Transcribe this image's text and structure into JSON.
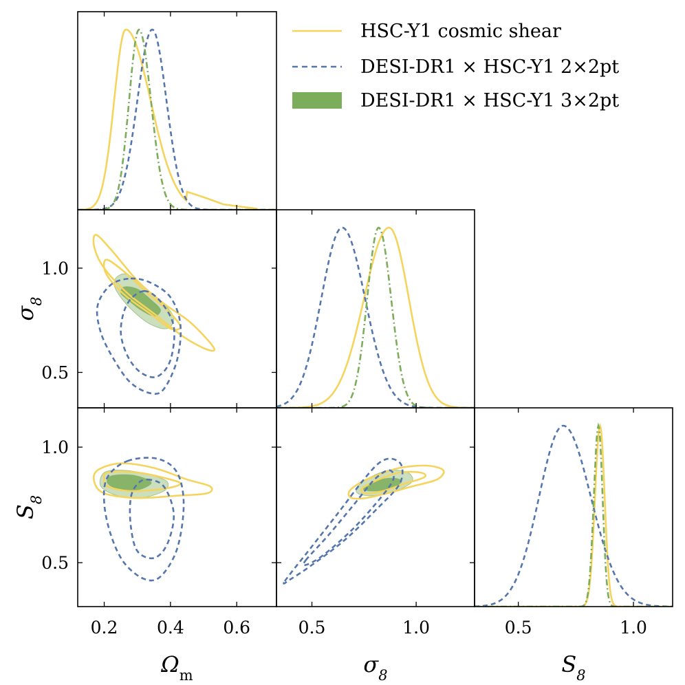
{
  "chart_data": {
    "type": "triangle-corner",
    "parameters": [
      {
        "key": "Om",
        "label": "Ωm",
        "range": [
          0.12,
          0.72
        ],
        "ticks": [
          0.2,
          0.4,
          0.6
        ],
        "tick_labels": [
          "0.2",
          "0.4",
          "0.6"
        ]
      },
      {
        "key": "s8",
        "label": "σ8",
        "range": [
          0.33,
          1.28
        ],
        "ticks": [
          0.5,
          1.0
        ],
        "tick_labels": [
          "0.5",
          "1.0"
        ]
      },
      {
        "key": "S8",
        "label": "S8",
        "range": [
          0.31,
          1.17
        ],
        "ticks": [
          0.5,
          1.0
        ],
        "tick_labels": [
          "0.5",
          "1.0"
        ]
      }
    ],
    "legend": {
      "placement": "top-right",
      "entries": [
        {
          "name": "HSC-Y1 cosmic shear",
          "style": "solid",
          "color": "#f5d45e"
        },
        {
          "name": "DESI-DR1 × HSC-Y1 2×2pt",
          "style": "dashed",
          "color": "#5576ac"
        },
        {
          "name": "DESI-DR1 × HSC-Y1 3×2pt",
          "style": "filled",
          "color": "#7cad5a"
        }
      ]
    },
    "marginals": {
      "Om": [
        {
          "series": "HSC-Y1 cosmic shear",
          "peak": 0.265,
          "sigma_left": 0.035,
          "sigma_right": 0.075,
          "tail": [
            [
              0.45,
              0.1
            ],
            [
              0.5,
              0.07
            ],
            [
              0.56,
              0.03
            ],
            [
              0.66,
              0.006
            ]
          ]
        },
        {
          "series": "DESI-DR1 × HSC-Y1 2×2pt",
          "peak": 0.345,
          "sigma_left": 0.045,
          "sigma_right": 0.043
        },
        {
          "series": "DESI-DR1 × HSC-Y1 3×2pt",
          "peak": 0.305,
          "sigma_left": 0.03,
          "sigma_right": 0.036
        }
      ],
      "s8": [
        {
          "series": "HSC-Y1 cosmic shear",
          "peak": 0.87,
          "sigma_left": 0.12,
          "sigma_right": 0.095
        },
        {
          "series": "DESI-DR1 × HSC-Y1 2×2pt",
          "peak": 0.645,
          "sigma_left": 0.1,
          "sigma_right": 0.11
        },
        {
          "series": "DESI-DR1 × HSC-Y1 3×2pt",
          "peak": 0.82,
          "sigma_left": 0.055,
          "sigma_right": 0.06
        }
      ],
      "S8": [
        {
          "series": "HSC-Y1 cosmic shear",
          "peak": 0.855,
          "sigma_left": 0.022,
          "sigma_right": 0.02
        },
        {
          "series": "DESI-DR1 × HSC-Y1 2×2pt",
          "peak": 0.695,
          "sigma_left": 0.105,
          "sigma_right": 0.12
        },
        {
          "series": "DESI-DR1 × HSC-Y1 3×2pt",
          "peak": 0.848,
          "sigma_left": 0.02,
          "sigma_right": 0.018
        }
      ]
    },
    "contours": {
      "s8_vs_Om": [
        {
          "series": "HSC-Y1 cosmic shear",
          "level": "95%",
          "points": [
            [
              0.175,
              1.16
            ],
            [
              0.22,
              1.09
            ],
            [
              0.3,
              0.94
            ],
            [
              0.38,
              0.83
            ],
            [
              0.46,
              0.74
            ],
            [
              0.53,
              0.62
            ],
            [
              0.51,
              0.61
            ],
            [
              0.44,
              0.67
            ],
            [
              0.36,
              0.77
            ],
            [
              0.27,
              0.88
            ],
            [
              0.2,
              1.0
            ],
            [
              0.17,
              1.1
            ]
          ]
        },
        {
          "series": "HSC-Y1 cosmic shear",
          "level": "68%",
          "points": [
            [
              0.21,
              1.04
            ],
            [
              0.27,
              0.97
            ],
            [
              0.33,
              0.88
            ],
            [
              0.39,
              0.8
            ],
            [
              0.43,
              0.72
            ],
            [
              0.4,
              0.71
            ],
            [
              0.34,
              0.78
            ],
            [
              0.27,
              0.86
            ],
            [
              0.22,
              0.94
            ],
            [
              0.2,
              1.0
            ]
          ]
        },
        {
          "series": "DESI-DR1 × HSC-Y1 2×2pt",
          "level": "95%",
          "points": [
            [
              0.28,
              0.95
            ],
            [
              0.34,
              0.93
            ],
            [
              0.4,
              0.86
            ],
            [
              0.43,
              0.73
            ],
            [
              0.42,
              0.56
            ],
            [
              0.38,
              0.42
            ],
            [
              0.34,
              0.4
            ],
            [
              0.28,
              0.45
            ],
            [
              0.23,
              0.56
            ],
            [
              0.19,
              0.69
            ],
            [
              0.18,
              0.82
            ],
            [
              0.22,
              0.92
            ]
          ]
        },
        {
          "series": "DESI-DR1 × HSC-Y1 2×2pt",
          "level": "68%",
          "points": [
            [
              0.32,
              0.89
            ],
            [
              0.37,
              0.84
            ],
            [
              0.41,
              0.72
            ],
            [
              0.4,
              0.56
            ],
            [
              0.36,
              0.48
            ],
            [
              0.31,
              0.5
            ],
            [
              0.27,
              0.58
            ],
            [
              0.25,
              0.7
            ],
            [
              0.27,
              0.83
            ]
          ]
        },
        {
          "series": "DESI-DR1 × HSC-Y1 3×2pt",
          "level": "95%",
          "points": [
            [
              0.24,
              0.96
            ],
            [
              0.27,
              0.97
            ],
            [
              0.32,
              0.91
            ],
            [
              0.38,
              0.83
            ],
            [
              0.41,
              0.76
            ],
            [
              0.39,
              0.71
            ],
            [
              0.34,
              0.73
            ],
            [
              0.29,
              0.79
            ],
            [
              0.25,
              0.86
            ],
            [
              0.23,
              0.92
            ]
          ]
        },
        {
          "series": "DESI-DR1 × HSC-Y1 3×2pt",
          "level": "68%",
          "points": [
            [
              0.26,
              0.91
            ],
            [
              0.3,
              0.9
            ],
            [
              0.34,
              0.85
            ],
            [
              0.37,
              0.8
            ],
            [
              0.35,
              0.77
            ],
            [
              0.31,
              0.8
            ],
            [
              0.27,
              0.85
            ],
            [
              0.25,
              0.88
            ]
          ]
        }
      ],
      "S8_vs_Om": [
        {
          "series": "HSC-Y1 cosmic shear",
          "level": "95%",
          "points": [
            [
              0.18,
              0.9
            ],
            [
              0.25,
              0.93
            ],
            [
              0.35,
              0.91
            ],
            [
              0.45,
              0.86
            ],
            [
              0.52,
              0.83
            ],
            [
              0.51,
              0.8
            ],
            [
              0.42,
              0.79
            ],
            [
              0.3,
              0.78
            ],
            [
              0.2,
              0.8
            ],
            [
              0.17,
              0.85
            ]
          ]
        },
        {
          "series": "HSC-Y1 cosmic shear",
          "level": "68%",
          "points": [
            [
              0.21,
              0.89
            ],
            [
              0.3,
              0.89
            ],
            [
              0.4,
              0.86
            ],
            [
              0.43,
              0.84
            ],
            [
              0.38,
              0.82
            ],
            [
              0.28,
              0.81
            ],
            [
              0.21,
              0.83
            ],
            [
              0.2,
              0.86
            ]
          ]
        },
        {
          "series": "DESI-DR1 × HSC-Y1 2×2pt",
          "level": "95%",
          "points": [
            [
              0.27,
              0.94
            ],
            [
              0.36,
              0.95
            ],
            [
              0.42,
              0.89
            ],
            [
              0.44,
              0.75
            ],
            [
              0.42,
              0.56
            ],
            [
              0.37,
              0.44
            ],
            [
              0.32,
              0.43
            ],
            [
              0.26,
              0.5
            ],
            [
              0.22,
              0.62
            ],
            [
              0.2,
              0.76
            ],
            [
              0.21,
              0.87
            ]
          ]
        },
        {
          "series": "DESI-DR1 × HSC-Y1 2×2pt",
          "level": "68%",
          "points": [
            [
              0.33,
              0.86
            ],
            [
              0.38,
              0.83
            ],
            [
              0.41,
              0.71
            ],
            [
              0.39,
              0.58
            ],
            [
              0.35,
              0.52
            ],
            [
              0.3,
              0.55
            ],
            [
              0.28,
              0.66
            ],
            [
              0.28,
              0.78
            ],
            [
              0.3,
              0.84
            ]
          ]
        },
        {
          "series": "DESI-DR1 × HSC-Y1 3×2pt",
          "level": "95%",
          "points": [
            [
              0.2,
              0.89
            ],
            [
              0.26,
              0.9
            ],
            [
              0.34,
              0.88
            ],
            [
              0.39,
              0.85
            ],
            [
              0.38,
              0.81
            ],
            [
              0.31,
              0.78
            ],
            [
              0.24,
              0.79
            ],
            [
              0.19,
              0.83
            ]
          ]
        },
        {
          "series": "DESI-DR1 × HSC-Y1 3×2pt",
          "level": "68%",
          "points": [
            [
              0.22,
              0.875
            ],
            [
              0.28,
              0.88
            ],
            [
              0.33,
              0.86
            ],
            [
              0.34,
              0.84
            ],
            [
              0.3,
              0.815
            ],
            [
              0.24,
              0.82
            ],
            [
              0.21,
              0.845
            ]
          ]
        }
      ],
      "S8_vs_s8": [
        {
          "series": "HSC-Y1 cosmic shear",
          "level": "95%",
          "points": [
            [
              0.68,
              0.81
            ],
            [
              0.74,
              0.85
            ],
            [
              0.82,
              0.88
            ],
            [
              0.92,
              0.91
            ],
            [
              1.05,
              0.92
            ],
            [
              1.13,
              0.9
            ],
            [
              1.1,
              0.86
            ],
            [
              0.98,
              0.83
            ],
            [
              0.86,
              0.8
            ],
            [
              0.76,
              0.78
            ],
            [
              0.69,
              0.78
            ]
          ]
        },
        {
          "series": "HSC-Y1 cosmic shear",
          "level": "68%",
          "points": [
            [
              0.74,
              0.82
            ],
            [
              0.82,
              0.86
            ],
            [
              0.92,
              0.89
            ],
            [
              1.02,
              0.89
            ],
            [
              1.04,
              0.87
            ],
            [
              0.94,
              0.84
            ],
            [
              0.84,
              0.81
            ],
            [
              0.76,
              0.8
            ]
          ]
        },
        {
          "series": "DESI-DR1 × HSC-Y1 2×2pt",
          "level": "95%",
          "points": [
            [
              0.37,
              0.42
            ],
            [
              0.5,
              0.57
            ],
            [
              0.63,
              0.72
            ],
            [
              0.74,
              0.85
            ],
            [
              0.82,
              0.93
            ],
            [
              0.88,
              0.95
            ],
            [
              0.93,
              0.92
            ],
            [
              0.92,
              0.84
            ],
            [
              0.82,
              0.74
            ],
            [
              0.66,
              0.6
            ],
            [
              0.5,
              0.49
            ],
            [
              0.4,
              0.43
            ]
          ]
        },
        {
          "series": "DESI-DR1 × HSC-Y1 2×2pt",
          "level": "68%",
          "points": [
            [
              0.47,
              0.51
            ],
            [
              0.58,
              0.62
            ],
            [
              0.7,
              0.75
            ],
            [
              0.8,
              0.86
            ],
            [
              0.87,
              0.9
            ],
            [
              0.89,
              0.86
            ],
            [
              0.82,
              0.77
            ],
            [
              0.69,
              0.64
            ],
            [
              0.55,
              0.53
            ],
            [
              0.47,
              0.49
            ]
          ]
        },
        {
          "series": "DESI-DR1 × HSC-Y1 3×2pt",
          "level": "95%",
          "points": [
            [
              0.72,
              0.83
            ],
            [
              0.78,
              0.87
            ],
            [
              0.87,
              0.9
            ],
            [
              0.96,
              0.89
            ],
            [
              0.98,
              0.85
            ],
            [
              0.9,
              0.81
            ],
            [
              0.79,
              0.79
            ],
            [
              0.72,
              0.8
            ]
          ]
        },
        {
          "series": "DESI-DR1 × HSC-Y1 3×2pt",
          "level": "68%",
          "points": [
            [
              0.76,
              0.83
            ],
            [
              0.83,
              0.86
            ],
            [
              0.9,
              0.865
            ],
            [
              0.93,
              0.85
            ],
            [
              0.88,
              0.82
            ],
            [
              0.8,
              0.81
            ],
            [
              0.75,
              0.815
            ]
          ]
        }
      ]
    }
  }
}
